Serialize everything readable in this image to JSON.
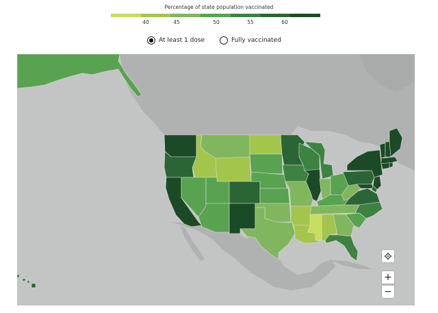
{
  "legend": {
    "title": "Percentage of state population vaccinated",
    "ticks": [
      "40",
      "45",
      "50",
      "55",
      "60"
    ],
    "colors": [
      "#c7dd5d",
      "#a3c54b",
      "#80b65e",
      "#58a250",
      "#3d8241",
      "#2a6535",
      "#1b4a27"
    ]
  },
  "toggle": {
    "first_dose_label": "At least 1 dose",
    "fully_label": "Fully vaccinated",
    "selected": "first_dose"
  },
  "map": {
    "ocean_color": "#c3c5c5",
    "land_color": "#b0b2b2",
    "state_border_color": "#dcdcd6",
    "states": [
      {
        "state": "WA",
        "level": 6
      },
      {
        "state": "OR",
        "level": 5
      },
      {
        "state": "CA",
        "level": 6
      },
      {
        "state": "ID",
        "level": 1
      },
      {
        "state": "NV",
        "level": 3
      },
      {
        "state": "MT",
        "level": 2
      },
      {
        "state": "WY",
        "level": 1
      },
      {
        "state": "UT",
        "level": 3
      },
      {
        "state": "AZ",
        "level": 3
      },
      {
        "state": "CO",
        "level": 5
      },
      {
        "state": "NM",
        "level": 6
      },
      {
        "state": "ND",
        "level": 1
      },
      {
        "state": "SD",
        "level": 3
      },
      {
        "state": "NE",
        "level": 3
      },
      {
        "state": "KS",
        "level": 3
      },
      {
        "state": "OK",
        "level": 2
      },
      {
        "state": "TX",
        "level": 2
      },
      {
        "state": "MN",
        "level": 5
      },
      {
        "state": "IA",
        "level": 4
      },
      {
        "state": "MO",
        "level": 2
      },
      {
        "state": "AR",
        "level": 1
      },
      {
        "state": "LA",
        "level": 1
      },
      {
        "state": "WI",
        "level": 4
      },
      {
        "state": "IL",
        "level": 6
      },
      {
        "state": "MI",
        "level": 4
      },
      {
        "state": "IN",
        "level": 2
      },
      {
        "state": "OH",
        "level": 3
      },
      {
        "state": "KY",
        "level": 3
      },
      {
        "state": "TN",
        "level": 2
      },
      {
        "state": "MS",
        "level": 0
      },
      {
        "state": "AL",
        "level": 1
      },
      {
        "state": "GA",
        "level": 2
      },
      {
        "state": "FL",
        "level": 4
      },
      {
        "state": "SC",
        "level": 3
      },
      {
        "state": "NC",
        "level": 4
      },
      {
        "state": "VA",
        "level": 5
      },
      {
        "state": "WV",
        "level": 2
      },
      {
        "state": "PA",
        "level": 5
      },
      {
        "state": "NY",
        "level": 6
      },
      {
        "state": "NJ",
        "level": 6
      },
      {
        "state": "MD",
        "level": 6
      },
      {
        "state": "DE",
        "level": 5
      },
      {
        "state": "CT",
        "level": 6
      },
      {
        "state": "RI",
        "level": 6
      },
      {
        "state": "MA",
        "level": 6
      },
      {
        "state": "VT",
        "level": 6
      },
      {
        "state": "NH",
        "level": 6
      },
      {
        "state": "ME",
        "level": 6
      },
      {
        "state": "AK",
        "level": 3
      },
      {
        "state": "HI",
        "level": 5
      }
    ]
  },
  "controls": {
    "zoom_in_symbol": "+",
    "zoom_out_symbol": "−"
  }
}
